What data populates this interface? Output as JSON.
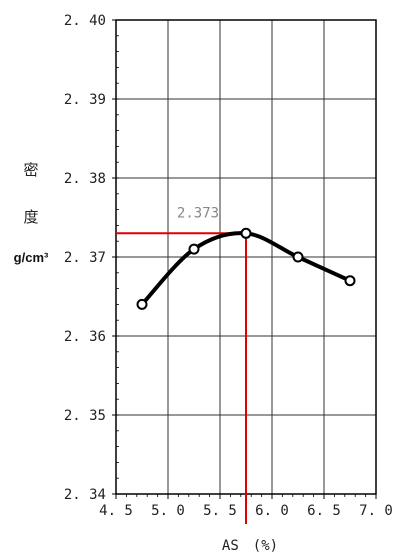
{
  "chart_data": {
    "type": "line",
    "xlabel": "AS　(%)",
    "ylabel_chars": [
      "密",
      "度"
    ],
    "ylabel_unit": "g/cm³",
    "xlim": [
      4.5,
      7.0
    ],
    "ylim": [
      2.34,
      2.4
    ],
    "x_ticks": [
      4.5,
      5.0,
      5.5,
      6.0,
      6.5,
      7.0
    ],
    "x_tick_labels": [
      "4.5",
      "5.0",
      "5.5",
      "6.0",
      "6.5",
      "7.0"
    ],
    "y_ticks": [
      2.34,
      2.35,
      2.36,
      2.37,
      2.38,
      2.39,
      2.4
    ],
    "y_tick_labels": [
      "2.34",
      "2.35",
      "2.36",
      "2.37",
      "2.38",
      "2.39",
      "2.40"
    ],
    "grid": true,
    "points": [
      {
        "x": 4.75,
        "y": 2.364
      },
      {
        "x": 5.25,
        "y": 2.371
      },
      {
        "x": 5.75,
        "y": 2.373
      },
      {
        "x": 6.25,
        "y": 2.37
      },
      {
        "x": 6.75,
        "y": 2.367
      }
    ],
    "optimum": {
      "x": 5.75,
      "y": 2.373,
      "label": "2.373"
    },
    "colors": {
      "curve": "#000000",
      "guide": "#e00000",
      "grid": "#333333"
    }
  }
}
